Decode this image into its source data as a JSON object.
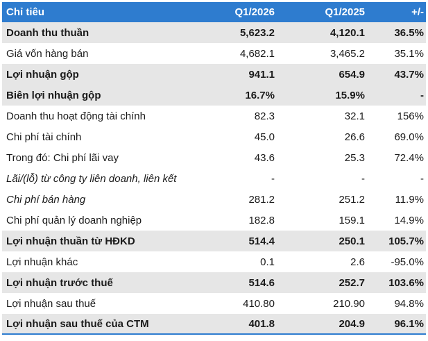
{
  "table": {
    "headers": [
      "Chỉ tiêu",
      "Q1/2026",
      "Q1/2025",
      "+/-"
    ],
    "rows": [
      {
        "label": "Doanh thu thuần",
        "q1_2026": "5,623.2",
        "q1_2025": "4,120.1",
        "change": "36.5%",
        "style": "bold"
      },
      {
        "label": "Giá vốn hàng bán",
        "q1_2026": "4,682.1",
        "q1_2025": "3,465.2",
        "change": "35.1%",
        "style": "plain"
      },
      {
        "label": "Lợi nhuận gộp",
        "q1_2026": "941.1",
        "q1_2025": "654.9",
        "change": "43.7%",
        "style": "bold"
      },
      {
        "label": "Biên lợi nhuận gộp",
        "q1_2026": "16.7%",
        "q1_2025": "15.9%",
        "change": "-",
        "style": "bold"
      },
      {
        "label": "Doanh thu hoạt động tài chính",
        "q1_2026": "82.3",
        "q1_2025": "32.1",
        "change": "156%",
        "style": "plain"
      },
      {
        "label": "Chi phí tài chính",
        "q1_2026": "45.0",
        "q1_2025": "26.6",
        "change": "69.0%",
        "style": "plain"
      },
      {
        "label": "Trong đó: Chi phí lãi vay",
        "q1_2026": "43.6",
        "q1_2025": "25.3",
        "change": "72.4%",
        "style": "plain"
      },
      {
        "label": "Lãi/(lỗ) từ công ty liên doanh, liên kết",
        "q1_2026": "-",
        "q1_2025": "-",
        "change": "-",
        "style": "italic"
      },
      {
        "label": "Chi phí bán hàng",
        "q1_2026": "281.2",
        "q1_2025": "251.2",
        "change": "11.9%",
        "style": "italic"
      },
      {
        "label": "Chi phí quản lý doanh nghiệp",
        "q1_2026": "182.8",
        "q1_2025": "159.1",
        "change": "14.9%",
        "style": "plain"
      },
      {
        "label": "Lợi nhuận thuần từ HĐKD",
        "q1_2026": "514.4",
        "q1_2025": "250.1",
        "change": "105.7%",
        "style": "bold"
      },
      {
        "label": "Lợi nhuận khác",
        "q1_2026": "0.1",
        "q1_2025": "2.6",
        "change": "-95.0%",
        "style": "plain"
      },
      {
        "label": "Lợi nhuận trước thuế",
        "q1_2026": "514.6",
        "q1_2025": "252.7",
        "change": "103.6%",
        "style": "bold"
      },
      {
        "label": "Lợi nhuận sau thuế",
        "q1_2026": "410.80",
        "q1_2025": "210.90",
        "change": "94.8%",
        "style": "plain"
      },
      {
        "label": "Lợi nhuận sau thuế của CTM",
        "q1_2026": "401.8",
        "q1_2025": "204.9",
        "change": "96.1%",
        "style": "bold"
      }
    ]
  },
  "colors": {
    "header_bg": "#2e7ccf",
    "bold_row_bg": "#e6e6e6",
    "text": "#1a1a1a"
  }
}
